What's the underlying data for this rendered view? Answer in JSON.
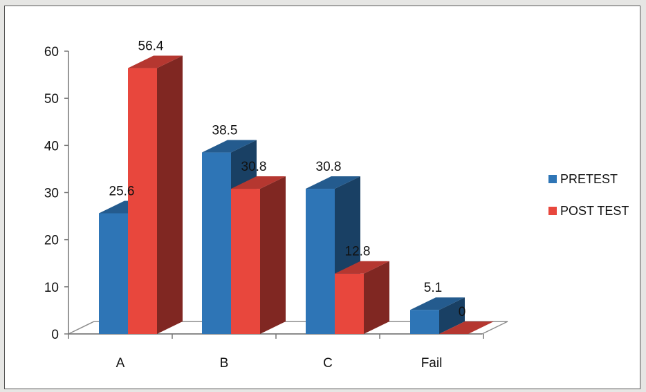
{
  "chart_data": {
    "type": "bar",
    "title": "",
    "xlabel": "",
    "ylabel": "",
    "categories": [
      "A",
      "B",
      "C",
      "Fail"
    ],
    "series": [
      {
        "name": "PRETEST",
        "values": [
          25.6,
          38.5,
          30.8,
          5.1
        ],
        "color": "#2e75b6"
      },
      {
        "name": "POST TEST",
        "values": [
          56.4,
          30.8,
          12.8,
          0
        ],
        "color": "#e8473d"
      }
    ],
    "data_labels": [
      [
        "25.6",
        "38.5",
        "30.8",
        "5.1"
      ],
      [
        "56.4",
        "30.8",
        "12.8",
        "0"
      ]
    ],
    "yticks": [
      "0",
      "10",
      "20",
      "30",
      "40",
      "50",
      "60"
    ],
    "ylim": [
      0,
      60
    ],
    "grid": false,
    "style": "3d-clustered-column",
    "legend_position": "right"
  }
}
